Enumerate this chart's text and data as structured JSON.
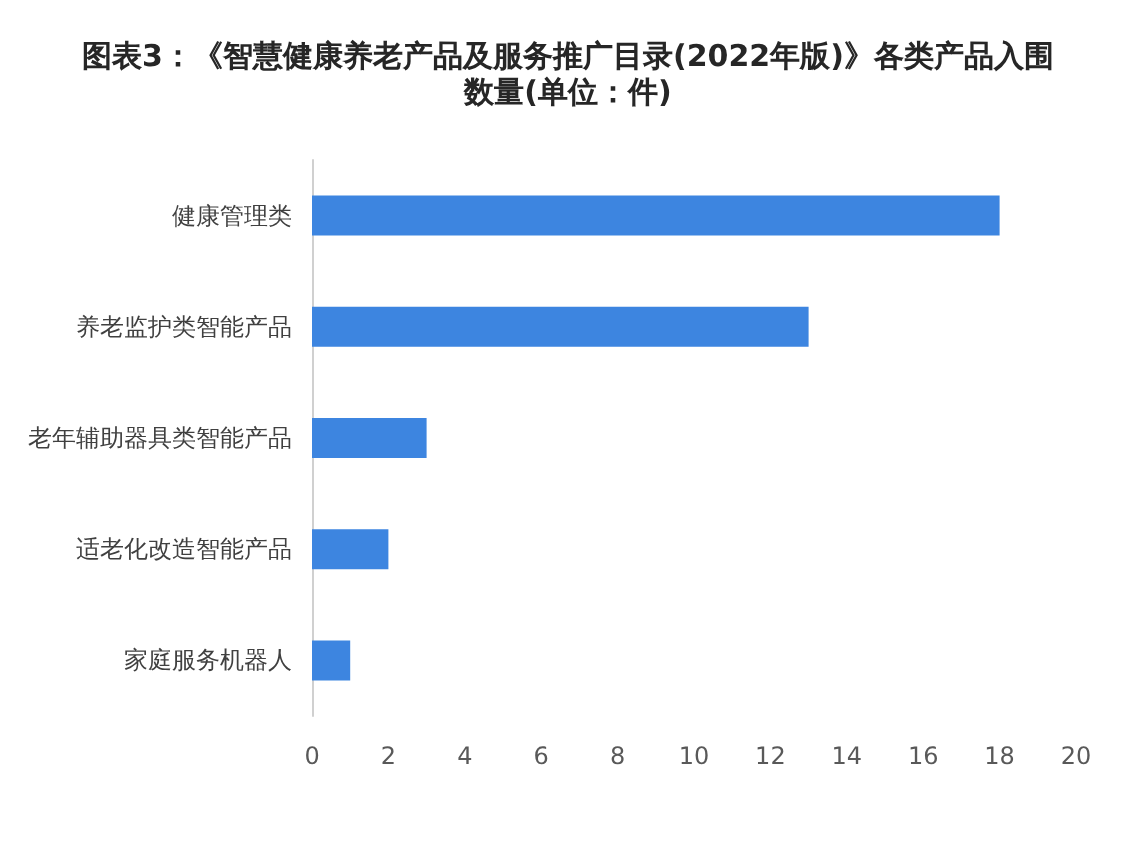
{
  "chart_data": {
    "type": "bar",
    "orientation": "horizontal",
    "title": "图表3：《智慧健康养老产品及服务推广目录(2022年版)》各类产品入围数量(单位：件)",
    "categories": [
      "健康管理类",
      "养老监护类智能产品",
      "老年辅助器具类智能产品",
      "适老化改造智能产品",
      "家庭服务机器人"
    ],
    "values": [
      18,
      13,
      3,
      2,
      1
    ],
    "color": "#3d85e0",
    "xlim": [
      0,
      20
    ],
    "xticks": [
      0,
      2,
      4,
      6,
      8,
      10,
      12,
      14,
      16,
      18,
      20
    ],
    "grid": false
  }
}
